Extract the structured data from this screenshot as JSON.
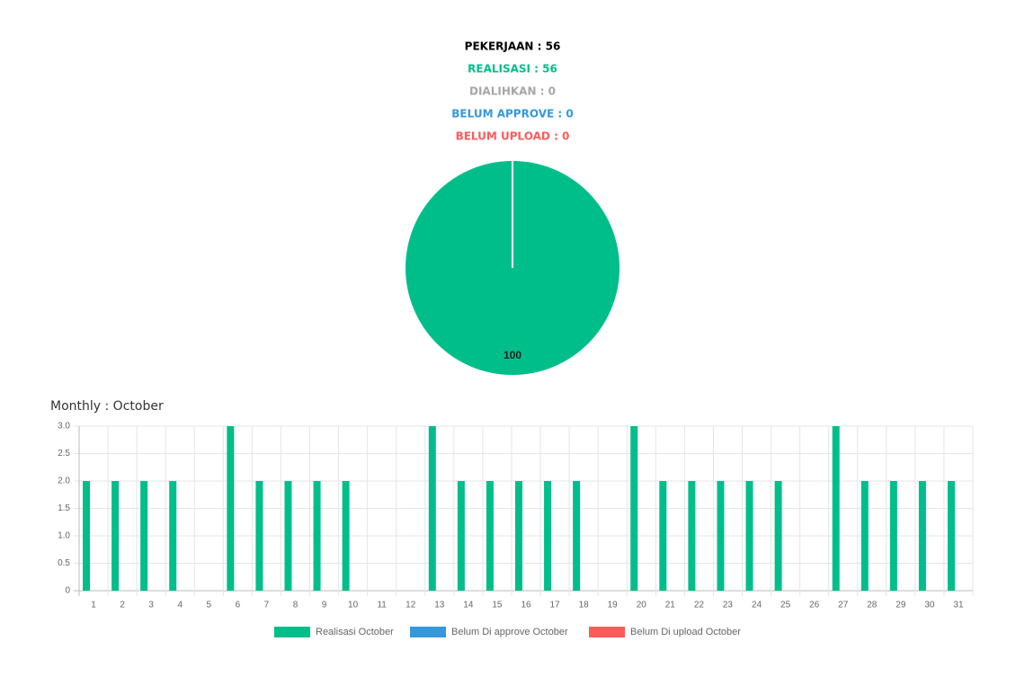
{
  "summary": [
    {
      "text": "PEKERJAAN : 56",
      "color": "#000000"
    },
    {
      "text": "REALISASI : 56",
      "color": "#00be8a"
    },
    {
      "text": "DIALIHKAN : 0",
      "color": "#a6a6a6"
    },
    {
      "text": "BELUM APPROVE : 0",
      "color": "#3498db"
    },
    {
      "text": "BELUM UPLOAD : 0",
      "color": "#ff5a5a"
    }
  ],
  "chart_data": [
    {
      "type": "pie",
      "values": [
        100
      ],
      "colors": [
        "#00be8a"
      ]
    },
    {
      "type": "bar",
      "title": "Monthly : October",
      "categories": [
        "1",
        "2",
        "3",
        "4",
        "5",
        "6",
        "7",
        "8",
        "9",
        "10",
        "11",
        "12",
        "13",
        "14",
        "15",
        "16",
        "17",
        "18",
        "19",
        "20",
        "21",
        "22",
        "23",
        "24",
        "25",
        "26",
        "27",
        "28",
        "29",
        "30",
        "31"
      ],
      "series": [
        {
          "name": "Realisasi October",
          "color": "#00be8a",
          "values": [
            2,
            2,
            2,
            2,
            0,
            3,
            2,
            2,
            2,
            2,
            0,
            0,
            3,
            2,
            2,
            2,
            2,
            2,
            0,
            3,
            2,
            2,
            2,
            2,
            2,
            0,
            3,
            2,
            2,
            2,
            2
          ]
        },
        {
          "name": "Belum Di approve October",
          "color": "#3498db",
          "values": [
            0,
            0,
            0,
            0,
            0,
            0,
            0,
            0,
            0,
            0,
            0,
            0,
            0,
            0,
            0,
            0,
            0,
            0,
            0,
            0,
            0,
            0,
            0,
            0,
            0,
            0,
            0,
            0,
            0,
            0,
            0
          ]
        },
        {
          "name": "Belum Di upload October",
          "color": "#ff5a5a",
          "values": [
            0,
            0,
            0,
            0,
            0,
            0,
            0,
            0,
            0,
            0,
            0,
            0,
            0,
            0,
            0,
            0,
            0,
            0,
            0,
            0,
            0,
            0,
            0,
            0,
            0,
            0,
            0,
            0,
            0,
            0,
            0
          ]
        }
      ],
      "ylim": [
        0,
        3
      ],
      "yticks": [
        0,
        0.5,
        {
          "value": 1,
          "label": "1.0"
        },
        1.5,
        {
          "value": 2,
          "label": "2.0"
        },
        2.5,
        {
          "value": 3,
          "label": "3.0"
        }
      ],
      "grid": true,
      "legend": "bottom"
    }
  ]
}
